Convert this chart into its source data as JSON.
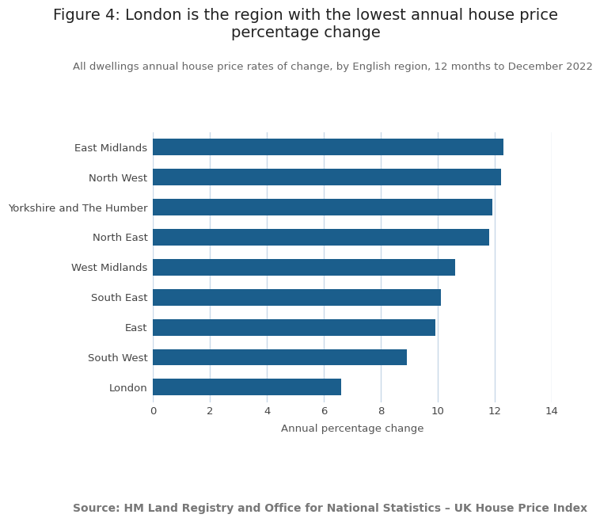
{
  "title": "Figure 4: London is the region with the lowest annual house price\npercentage change",
  "subtitle": "All dwellings annual house price rates of change, by English region, 12 months to December 2022",
  "source": "Source: HM Land Registry and Office for National Statistics – UK House Price Index",
  "categories": [
    "East Midlands",
    "North West",
    "Yorkshire and The Humber",
    "North East",
    "West Midlands",
    "South East",
    "East",
    "South West",
    "London"
  ],
  "values": [
    12.3,
    12.2,
    11.9,
    11.8,
    10.6,
    10.1,
    9.9,
    8.9,
    6.6
  ],
  "bar_color": "#1b5e8c",
  "xlabel": "Annual percentage change",
  "xlim": [
    0,
    14
  ],
  "xticks": [
    0,
    2,
    4,
    6,
    8,
    10,
    12,
    14
  ],
  "background_color": "#ffffff",
  "grid_color": "#c8d8e8",
  "title_fontsize": 14,
  "subtitle_fontsize": 9.5,
  "source_fontsize": 10,
  "axis_label_fontsize": 9.5,
  "tick_fontsize": 9.5,
  "bar_height": 0.55
}
